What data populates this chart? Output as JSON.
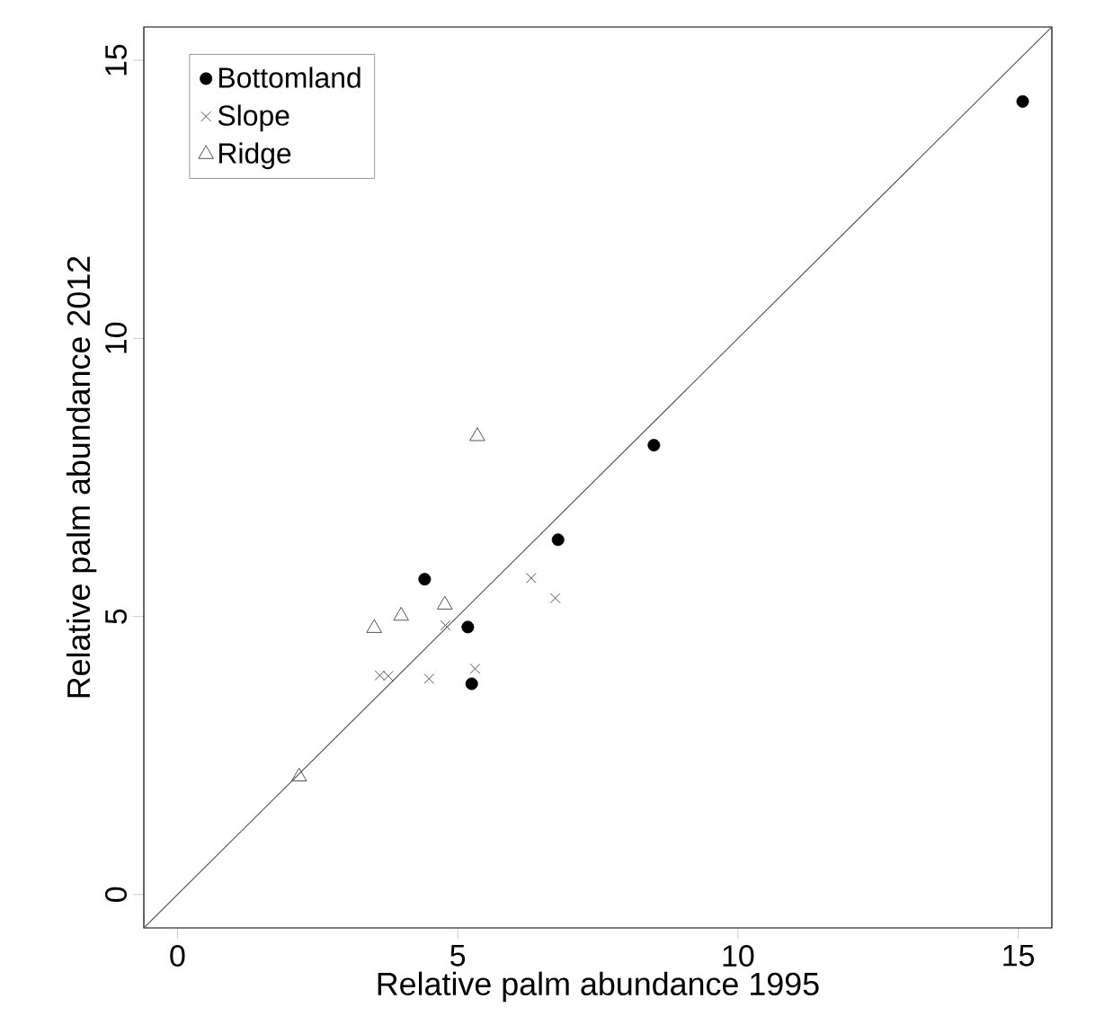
{
  "chart_data": {
    "type": "scatter",
    "xlabel": "Relative palm abundance 1995",
    "ylabel": "Relative palm abundance 2012",
    "xlim": [
      -0.6,
      15.6
    ],
    "ylim": [
      -0.6,
      15.6
    ],
    "xticks": [
      0,
      5,
      10,
      15
    ],
    "yticks": [
      0,
      5,
      10,
      15
    ],
    "legend": "top left",
    "series": [
      {
        "name": "Bottomland",
        "color": "#000000",
        "marker": "circle",
        "x": [
          15.08,
          8.5,
          6.79,
          4.41,
          5.18,
          5.25
        ],
        "values": [
          14.26,
          8.08,
          6.38,
          5.67,
          4.81,
          3.79
        ]
      },
      {
        "name": "Slope",
        "color": "#555555",
        "marker": "cross",
        "x": [
          6.31,
          6.74,
          4.78,
          5.31,
          4.49,
          3.61,
          3.76
        ],
        "values": [
          5.69,
          5.33,
          4.84,
          4.06,
          3.88,
          3.94,
          3.93
        ]
      },
      {
        "name": "Ridge",
        "color": "#555555",
        "marker": "triangle",
        "x": [
          5.35,
          4.77,
          3.99,
          3.51,
          2.17
        ],
        "values": [
          8.24,
          5.21,
          5.01,
          4.79,
          2.12
        ]
      },
      {
        "type": "line",
        "color": "#555555",
        "marker": "none",
        "x": [
          -0.6,
          15.6
        ],
        "values": [
          -0.6,
          15.6
        ]
      }
    ]
  }
}
